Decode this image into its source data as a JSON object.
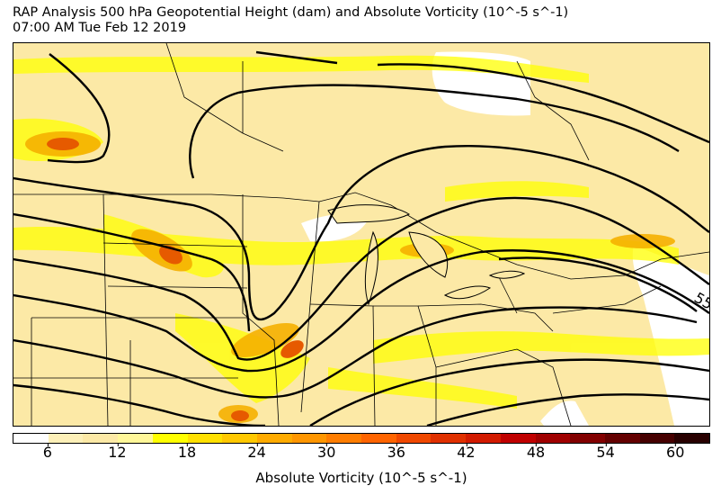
{
  "title_line1": "RAP Analysis 500 hPa Geopotential Height (dam) and Absolute Vorticity (10^-5 s^-1)",
  "title_line2": "07:00 AM Tue Feb 12 2019",
  "map": {
    "contour_label": "55",
    "colors": {
      "background": "#fce9a6",
      "low_vorticity": "#ffffff",
      "yellow": "#ffff00",
      "orange": "#f5b000",
      "dark_orange": "#e65a00",
      "red": "#d20000",
      "contours": "#000000",
      "borders": "#000000"
    }
  },
  "colorbar": {
    "label": "Absolute Vorticity (10^-5 s^-1)",
    "ticks": [
      "6",
      "12",
      "18",
      "24",
      "30",
      "36",
      "42",
      "48",
      "54",
      "60"
    ],
    "tick_values": [
      6,
      12,
      18,
      24,
      30,
      36,
      42,
      48,
      54,
      60
    ],
    "range": [
      3,
      63
    ],
    "step": 3,
    "colors": [
      "#ffffff",
      "#fdf0b8",
      "#fce9a6",
      "#fff799",
      "#ffff00",
      "#ffe000",
      "#ffc800",
      "#ffab00",
      "#ff9600",
      "#ff7d00",
      "#ff6400",
      "#f04800",
      "#e03000",
      "#d21a00",
      "#c00000",
      "#a00000",
      "#820000",
      "#640000",
      "#460000",
      "#280000"
    ]
  }
}
